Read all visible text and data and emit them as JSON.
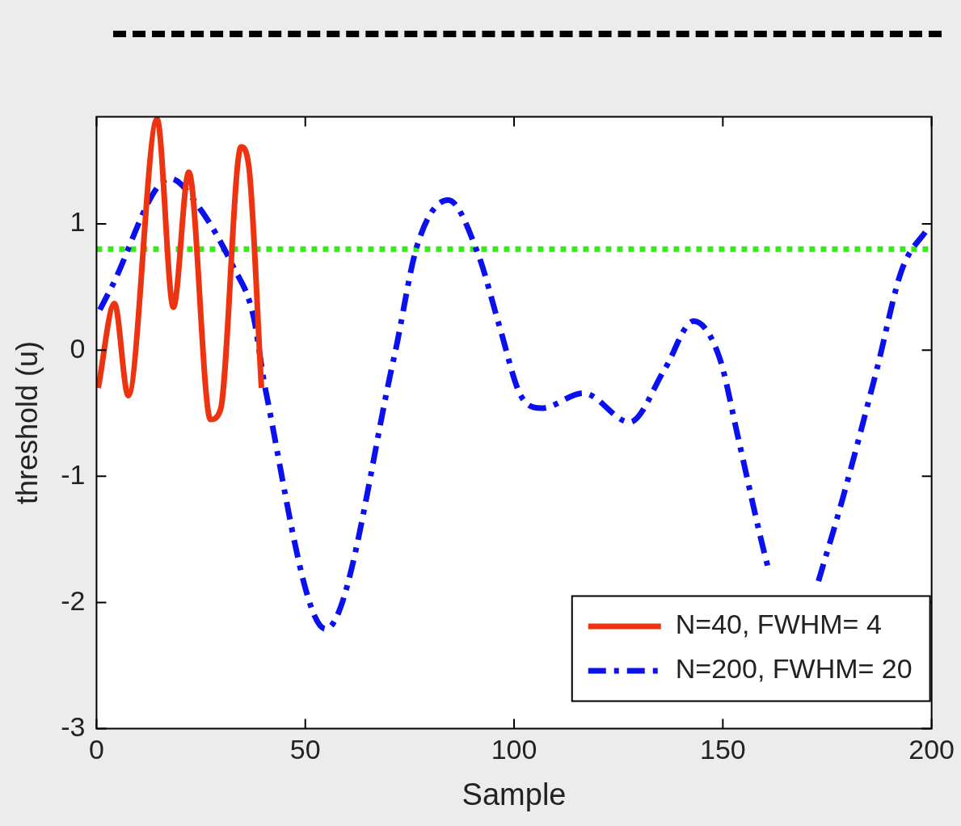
{
  "chart_data": {
    "type": "line",
    "xlabel": "Sample",
    "ylabel": "threshold (u)",
    "xlim": [
      0,
      200
    ],
    "xticks": [
      0,
      50,
      100,
      150,
      200
    ],
    "ylim": [
      -3,
      1.85
    ],
    "yticks": [
      -3,
      -2,
      -1,
      0,
      1
    ],
    "grid": false,
    "legend": "bottom right",
    "marker": "none",
    "ref_lines": [
      {
        "axis": "y",
        "value": 0.8,
        "color": "#33ee11",
        "line_style": "dotted"
      }
    ],
    "series": [
      {
        "name": "N=40, FWHM= 4",
        "color": "#ee3311",
        "line_style": "solid",
        "x": [
          0.4,
          4.3,
          7.6,
          14.5,
          18.4,
          22.1,
          27.3,
          29.7,
          34.6,
          36.5,
          39.5
        ],
        "values": [
          -0.3,
          0.37,
          -0.36,
          1.83,
          0.34,
          1.41,
          -0.55,
          -0.47,
          1.61,
          1.45,
          -0.3
        ]
      },
      {
        "name": "N=200, FWHM= 20",
        "color": "#0a10ee",
        "line_style": "dashed",
        "x": [
          0.8,
          3.3,
          17.6,
          24.8,
          32.6,
          37.5,
          40.4,
          54.9,
          71.3,
          76.8,
          84.2,
          91.4,
          96.5,
          101.6,
          106.6,
          116.6,
          127.7,
          136.1,
          143,
          149.2,
          153.7,
          159,
          161.1,
          167,
          172.9,
          178.5,
          186.9,
          192.8,
          199.2
        ],
        "values": [
          0.32,
          0.48,
          1.36,
          1.12,
          0.67,
          0.28,
          -0.3,
          -2.21,
          -0.05,
          0.83,
          1.19,
          0.76,
          0.19,
          -0.36,
          -0.46,
          -0.34,
          -0.57,
          -0.15,
          0.23,
          -0.06,
          -0.7,
          -1.48,
          -1.76,
          null,
          -1.83,
          -1.2,
          -0.15,
          0.63,
          0.97
        ]
      }
    ]
  }
}
